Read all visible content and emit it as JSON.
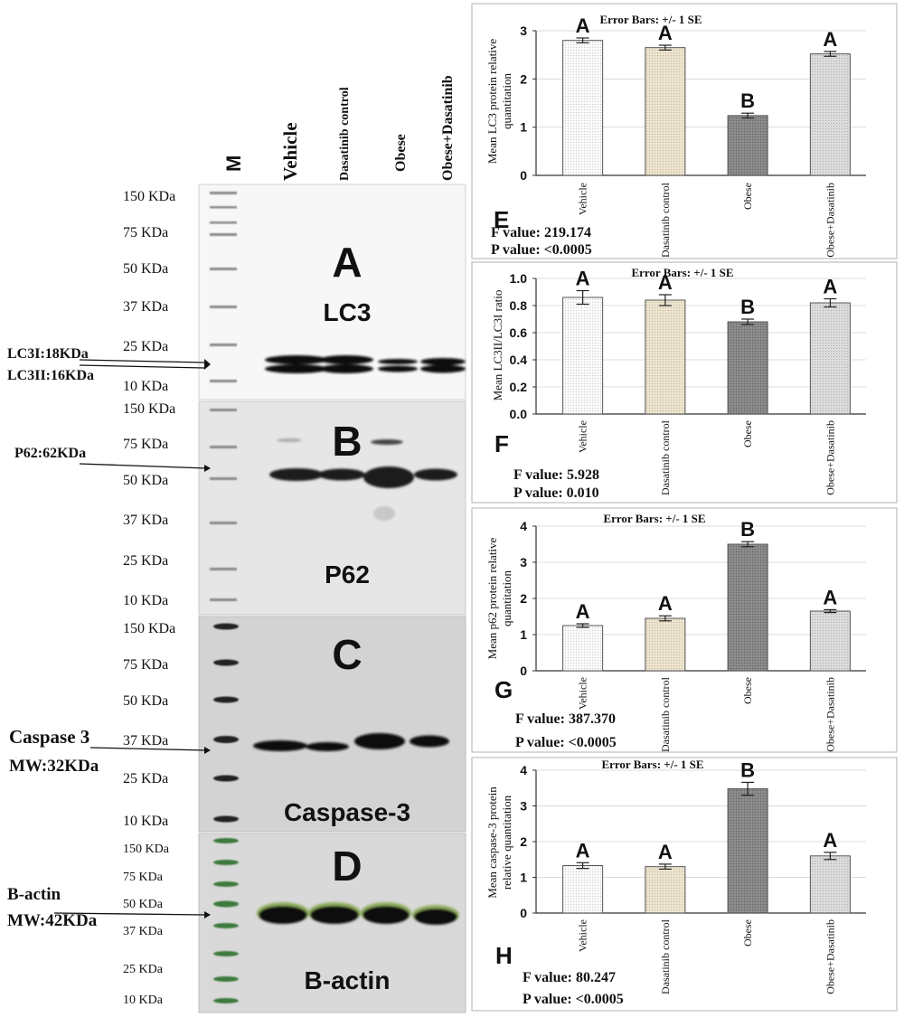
{
  "blots": {
    "marker_label": "M",
    "lanes": [
      "Vehicle",
      "Dasatinib control",
      "Obese",
      "Obese+Dasatinib"
    ],
    "panels": [
      {
        "letter": "A",
        "protein": "LC3",
        "ladder": [
          "150 KDa",
          "75 KDa",
          "50 KDa",
          "37 KDa",
          "25 KDa",
          "10 KDa"
        ],
        "band_labels": [
          "LC3I:18KDa",
          "LC3II:16KDa"
        ]
      },
      {
        "letter": "B",
        "protein": "P62",
        "ladder": [
          "150 KDa",
          "75 KDa",
          "50 KDa",
          "37 KDa",
          "25 KDa",
          "10 KDa"
        ],
        "band_labels": [
          "P62:62KDa"
        ]
      },
      {
        "letter": "C",
        "protein": "Caspase-3",
        "ladder": [
          "150 KDa",
          "75 KDa",
          "50 KDa",
          "37 KDa",
          "25 KDa",
          "10 KDa"
        ],
        "band_labels": [
          "Caspase 3",
          "MW:32KDa"
        ]
      },
      {
        "letter": "D",
        "protein": "B-actin",
        "ladder": [
          "150 KDa",
          "75 KDa",
          "50 KDa",
          "37 KDa",
          "25 KDa",
          "10 KDa"
        ],
        "band_labels": [
          "B-actin",
          "MW:42KDa"
        ]
      }
    ]
  },
  "chart_data": [
    {
      "type": "bar",
      "panel": "E",
      "title": "Error Bars: +/- 1 SE",
      "ylabel": [
        "Mean LC3 protein relative",
        "quantitation"
      ],
      "categories": [
        "Vehicle",
        "Dasatinib control",
        "Obese",
        "Obese+Dasatinib"
      ],
      "values": [
        2.8,
        2.65,
        1.24,
        2.52
      ],
      "errors": [
        0.05,
        0.05,
        0.05,
        0.05
      ],
      "letters": [
        "A",
        "A",
        "B",
        "A"
      ],
      "ylim": [
        0,
        3
      ],
      "yticks": [
        "0",
        "1",
        "2",
        "3"
      ],
      "stats": [
        "F value: 219.174",
        "P value: <0.0005"
      ]
    },
    {
      "type": "bar",
      "panel": "F",
      "title": "Error Bars: +/- 1 SE",
      "ylabel": [
        "Mean LC3II/LC3I ratio"
      ],
      "categories": [
        "Vehicle",
        "Dasatinib control",
        "Obese",
        "Obese+Dasatinib"
      ],
      "values": [
        0.86,
        0.84,
        0.68,
        0.82
      ],
      "errors": [
        0.05,
        0.04,
        0.02,
        0.03
      ],
      "letters": [
        "A",
        "A",
        "B",
        "A"
      ],
      "ylim": [
        0,
        1.0
      ],
      "yticks": [
        "0.0",
        "0.2",
        "0.4",
        "0.6",
        "0.8",
        "1.0"
      ],
      "stats": [
        "F value: 5.928",
        "P value: 0.010"
      ]
    },
    {
      "type": "bar",
      "panel": "G",
      "title": "Error Bars: +/- 1 SE",
      "ylabel": [
        "Mean p62 protein relative",
        "quantitation"
      ],
      "categories": [
        "Vehicle",
        "Dasatinib control",
        "Obese",
        "Obese+Dasatinib"
      ],
      "values": [
        1.25,
        1.45,
        3.5,
        1.65
      ],
      "errors": [
        0.05,
        0.07,
        0.07,
        0.04
      ],
      "letters": [
        "A",
        "A",
        "B",
        "A"
      ],
      "ylim": [
        0,
        4
      ],
      "yticks": [
        "0",
        "1",
        "2",
        "3",
        "4"
      ],
      "stats": [
        "F value: 387.370",
        "P value: <0.0005"
      ]
    },
    {
      "type": "bar",
      "panel": "H",
      "title": "Error Bars: +/- 1 SE",
      "ylabel": [
        "Mean caspase-3 protein",
        "relative quantitation"
      ],
      "categories": [
        "Vehicle",
        "Dasatinib control",
        "Obese",
        "Obese+Dasatinib"
      ],
      "values": [
        1.33,
        1.3,
        3.48,
        1.6
      ],
      "errors": [
        0.08,
        0.07,
        0.18,
        0.1
      ],
      "letters": [
        "A",
        "A",
        "B",
        "A"
      ],
      "ylim": [
        0,
        4
      ],
      "yticks": [
        "0",
        "1",
        "2",
        "3",
        "4"
      ],
      "stats": [
        "F value: 80.247",
        "P value: <0.0005"
      ]
    }
  ]
}
